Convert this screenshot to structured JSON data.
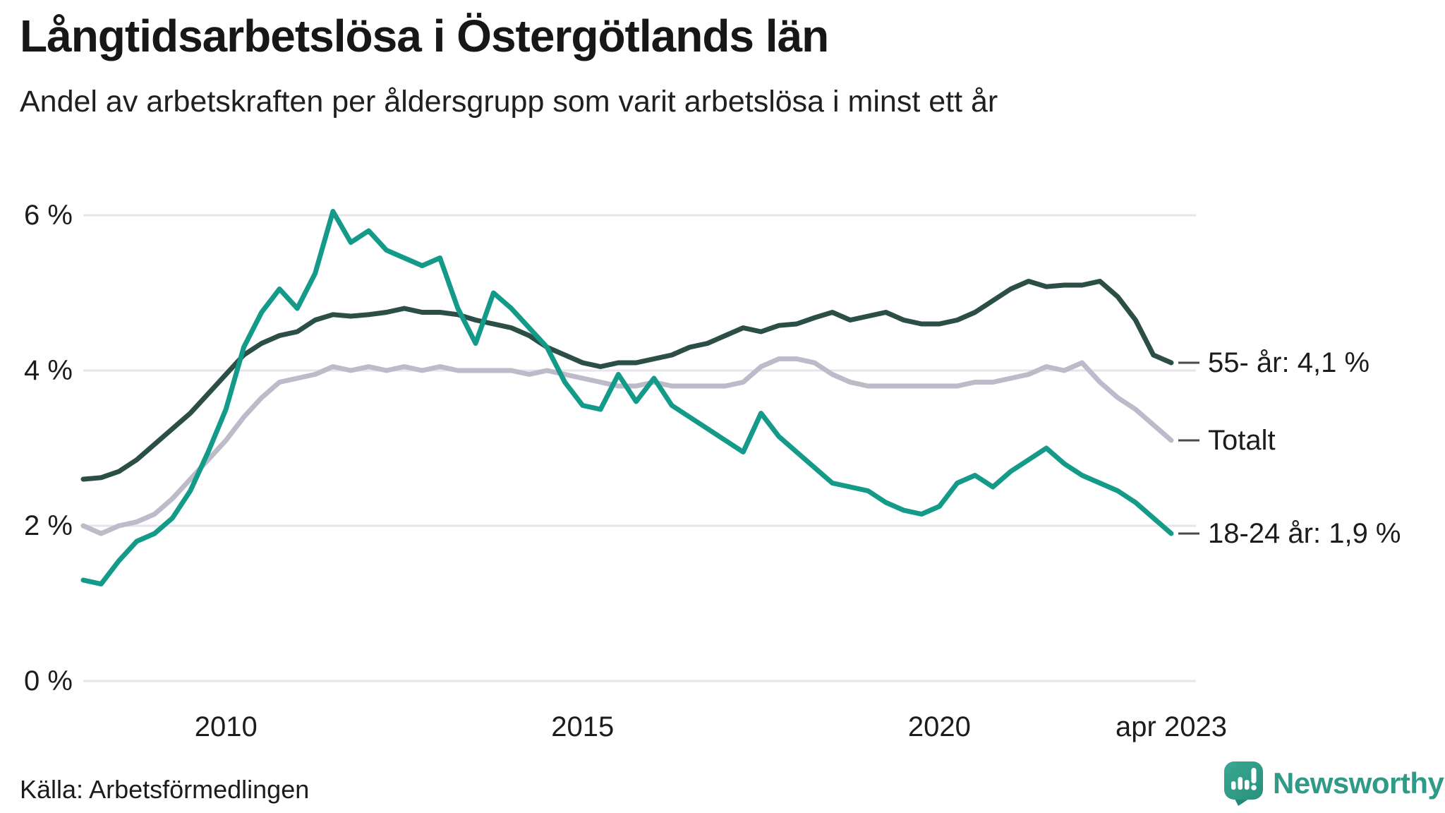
{
  "header": {
    "title": "Långtidsarbetslösa i Östergötlands län",
    "subtitle": "Andel av arbetskraften per åldersgrupp som varit arbetslösa i minst ett år"
  },
  "footer": {
    "source": "Källa: Arbetsförmedlingen",
    "brand": "Newsworthy",
    "brand_color": "#2f9a88"
  },
  "chart_data": {
    "type": "line",
    "title": "Långtidsarbetslösa i Östergötlands län",
    "subtitle": "Andel av arbetskraften per åldersgrupp som varit arbetslösa i minst ett år",
    "unit": "%",
    "ylim": [
      0,
      6.5
    ],
    "grid": true,
    "grid_color": "#e6e5eb",
    "legend_position": "right-end-labels",
    "y_ticks": [
      {
        "value": 0,
        "label": "0 %"
      },
      {
        "value": 2,
        "label": "2 %"
      },
      {
        "value": 4,
        "label": "4 %"
      },
      {
        "value": 6,
        "label": "6 %"
      }
    ],
    "x_ticks": [
      {
        "value": 2010,
        "label": "2010"
      },
      {
        "value": 2015,
        "label": "2015"
      },
      {
        "value": 2020,
        "label": "2020"
      },
      {
        "value": 2023.25,
        "label": "apr 2023"
      }
    ],
    "x": [
      2008,
      2008.25,
      2008.5,
      2008.75,
      2009,
      2009.25,
      2009.5,
      2009.75,
      2010,
      2010.25,
      2010.5,
      2010.75,
      2011,
      2011.25,
      2011.5,
      2011.75,
      2012,
      2012.25,
      2012.5,
      2012.75,
      2013,
      2013.25,
      2013.5,
      2013.75,
      2014,
      2014.25,
      2014.5,
      2014.75,
      2015,
      2015.25,
      2015.5,
      2015.75,
      2016,
      2016.25,
      2016.5,
      2016.75,
      2017,
      2017.25,
      2017.5,
      2017.75,
      2018,
      2018.25,
      2018.5,
      2018.75,
      2019,
      2019.25,
      2019.5,
      2019.75,
      2020,
      2020.25,
      2020.5,
      2020.75,
      2021,
      2021.25,
      2021.5,
      2021.75,
      2022,
      2022.25,
      2022.5,
      2022.75,
      2023,
      2023.25
    ],
    "series": [
      {
        "name": "55- år",
        "end_label": "55- år: 4,1 %",
        "final_value": "4,1 %",
        "color": "#2b4f47",
        "z": 2,
        "values": [
          2.6,
          2.62,
          2.7,
          2.85,
          3.05,
          3.25,
          3.45,
          3.7,
          3.95,
          4.2,
          4.35,
          4.45,
          4.5,
          4.65,
          4.72,
          4.7,
          4.72,
          4.75,
          4.8,
          4.75,
          4.75,
          4.72,
          4.65,
          4.6,
          4.55,
          4.45,
          4.3,
          4.2,
          4.1,
          4.05,
          4.1,
          4.1,
          4.15,
          4.2,
          4.3,
          4.35,
          4.45,
          4.55,
          4.5,
          4.58,
          4.6,
          4.68,
          4.75,
          4.65,
          4.7,
          4.75,
          4.65,
          4.6,
          4.6,
          4.65,
          4.75,
          4.9,
          5.05,
          5.15,
          5.08,
          5.1,
          5.1,
          5.15,
          4.95,
          4.65,
          4.2,
          4.1
        ]
      },
      {
        "name": "Totalt",
        "end_label": "Totalt",
        "final_value": "3,1 %",
        "color": "#bdbbca",
        "z": 1,
        "values": [
          2.0,
          1.9,
          2.0,
          2.05,
          2.15,
          2.35,
          2.6,
          2.85,
          3.1,
          3.4,
          3.65,
          3.85,
          3.9,
          3.95,
          4.05,
          4.0,
          4.05,
          4.0,
          4.05,
          4.0,
          4.05,
          4.0,
          4.0,
          4.0,
          4.0,
          3.95,
          4.0,
          3.95,
          3.9,
          3.85,
          3.8,
          3.8,
          3.85,
          3.8,
          3.8,
          3.8,
          3.8,
          3.85,
          4.05,
          4.15,
          4.15,
          4.1,
          3.95,
          3.85,
          3.8,
          3.8,
          3.8,
          3.8,
          3.8,
          3.8,
          3.85,
          3.85,
          3.9,
          3.95,
          4.05,
          4.0,
          4.1,
          3.85,
          3.65,
          3.5,
          3.3,
          3.1
        ]
      },
      {
        "name": "18-24 år",
        "end_label": "18-24 år: 1,9 %",
        "final_value": "1,9 %",
        "color": "#149a89",
        "z": 3,
        "values": [
          1.3,
          1.25,
          1.55,
          1.8,
          1.9,
          2.1,
          2.45,
          2.95,
          3.5,
          4.3,
          4.75,
          5.05,
          4.8,
          5.25,
          6.05,
          5.65,
          5.8,
          5.55,
          5.45,
          5.35,
          5.45,
          4.8,
          4.35,
          5.0,
          4.8,
          4.55,
          4.3,
          3.85,
          3.55,
          3.5,
          3.95,
          3.6,
          3.9,
          3.55,
          3.4,
          3.25,
          3.1,
          2.95,
          3.45,
          3.15,
          2.95,
          2.75,
          2.55,
          2.5,
          2.45,
          2.3,
          2.2,
          2.15,
          2.25,
          2.55,
          2.65,
          2.5,
          2.7,
          2.85,
          3.0,
          2.8,
          2.65,
          2.55,
          2.45,
          2.3,
          2.1,
          1.9
        ]
      }
    ]
  }
}
